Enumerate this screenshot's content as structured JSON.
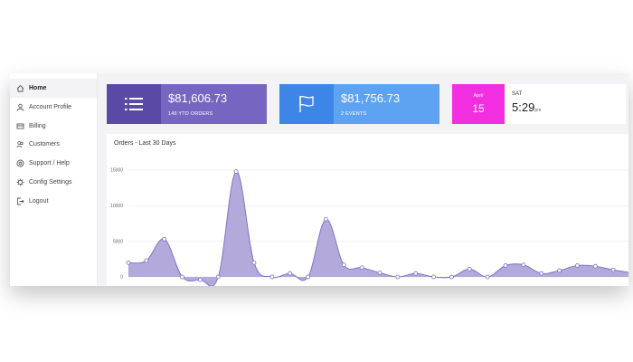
{
  "sidebar": {
    "items": [
      {
        "label": "Home",
        "icon": "home-icon",
        "active": true
      },
      {
        "label": "Account Profile",
        "icon": "user-icon",
        "active": false
      },
      {
        "label": "Billing",
        "icon": "billing-icon",
        "active": false
      },
      {
        "label": "Customers",
        "icon": "customers-icon",
        "active": false
      },
      {
        "label": "Support / Help",
        "icon": "support-icon",
        "active": false
      },
      {
        "label": "Config Settings",
        "icon": "gear-icon",
        "active": false
      },
      {
        "label": "Logout",
        "icon": "logout-icon",
        "active": false
      }
    ]
  },
  "cards": {
    "orders": {
      "value": "$81,606.73",
      "sub": "149 YTD ORDERS",
      "icon": "list-icon"
    },
    "events": {
      "value": "$81,756.73",
      "sub": "2 EVENTS",
      "icon": "flag-icon"
    },
    "date": {
      "month": "April",
      "day": "15",
      "dow": "SAT",
      "time": "5:29",
      "ampm": "pm"
    }
  },
  "colors": {
    "orders_card": "#7765c2",
    "orders_icon_bg": "#5a4aa6",
    "events_card": "#5ea3f2",
    "events_icon_bg": "#3d86e8",
    "date_badge": "#f22fe0",
    "area_fill": "#b3a9db",
    "area_stroke": "#7b6cc0"
  },
  "chart_data": {
    "type": "area",
    "title": "Orders - Last 30 Days",
    "y_ticks": [
      "15000",
      "10000",
      "5000",
      "0"
    ],
    "ylim": [
      0,
      15000
    ],
    "grid": true,
    "smooth": true,
    "values": [
      2000,
      2300,
      5300,
      0,
      -400,
      0,
      14800,
      2000,
      0,
      500,
      0,
      8100,
      1700,
      1300,
      600,
      0,
      500,
      0,
      0,
      1100,
      0,
      1600,
      1700,
      500,
      900,
      1600,
      1500,
      1000,
      600
    ]
  }
}
